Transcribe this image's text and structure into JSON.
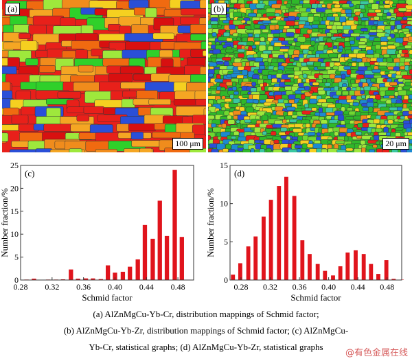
{
  "panels": {
    "a": {
      "label": "(a)",
      "scale": "100 μm",
      "palette": [
        "#e8201a",
        "#f06a10",
        "#f5a623",
        "#f08c1c",
        "#d81010",
        "#9ee83c",
        "#2fd02a",
        "#f5d020",
        "#2a4fd8"
      ]
    },
    "b": {
      "label": "(b)",
      "scale": "20 μm",
      "palette": [
        "#2fb82a",
        "#6fd830",
        "#9ee83c",
        "#2a4fd8",
        "#1c8ad0",
        "#f5d020",
        "#f08c1c",
        "#e8201a",
        "#3ac8a0"
      ]
    }
  },
  "chart_data": [
    {
      "type": "bar",
      "panel_label": "(c)",
      "xlabel": "Schmid factor",
      "ylabel": "Number fraction/%",
      "xlim": [
        0.28,
        0.5
      ],
      "ylim": [
        0,
        25
      ],
      "xticks": [
        "0.28",
        "0.32",
        "0.36",
        "0.40",
        "0.44",
        "0.48"
      ],
      "yticks": [
        "0",
        "5",
        "10",
        "15",
        "20",
        "25"
      ],
      "color": "#e0141c",
      "x": [
        0.2875,
        0.297,
        0.315,
        0.325,
        0.334,
        0.344,
        0.353,
        0.363,
        0.372,
        0.382,
        0.391,
        0.4,
        0.41,
        0.419,
        0.429,
        0.438,
        0.448,
        0.457,
        0.466,
        0.476,
        0.485
      ],
      "values": [
        0.1,
        0.3,
        0.1,
        0.1,
        0.15,
        2.3,
        0.3,
        0.35,
        0.35,
        0.2,
        3.2,
        1.6,
        1.8,
        2.9,
        4.5,
        12.0,
        9.0,
        17.3,
        9.6,
        24.0,
        9.4
      ]
    },
    {
      "type": "bar",
      "panel_label": "(d)",
      "xlabel": "Schmid factor",
      "ylabel": "Number fraction/%",
      "xlim": [
        0.265,
        0.5
      ],
      "ylim": [
        0,
        15
      ],
      "xticks": [
        "0.28",
        "0.32",
        "0.36",
        "0.40",
        "0.44",
        "0.48"
      ],
      "yticks": [
        "0",
        "5",
        "10",
        "15"
      ],
      "color": "#e0141c",
      "x": [
        0.269,
        0.279,
        0.29,
        0.3,
        0.311,
        0.321,
        0.332,
        0.342,
        0.353,
        0.364,
        0.374,
        0.385,
        0.395,
        0.406,
        0.416,
        0.426,
        0.437,
        0.448,
        0.458,
        0.468,
        0.479,
        0.489,
        0.5
      ],
      "values": [
        0.7,
        2.2,
        4.4,
        5.7,
        8.3,
        10.5,
        12.3,
        13.5,
        11.0,
        5.2,
        3.4,
        2.1,
        1.2,
        0.6,
        1.8,
        3.6,
        3.9,
        3.4,
        2.1,
        0.8,
        2.6,
        0.15,
        0.05
      ]
    }
  ],
  "caption": [
    "(a) AlZnMgCu-Yb-Cr, distribution mappings of Schmid factor;",
    "(b) AlZnMgCu-Yb-Zr, distribution mappings of Schmid factor; (c) AlZnMgCu-",
    "Yb-Cr, statistical graphs; (d) AlZnMgCu-Yb-Zr, statistical graphs"
  ],
  "watermark": "@有色金属在线"
}
